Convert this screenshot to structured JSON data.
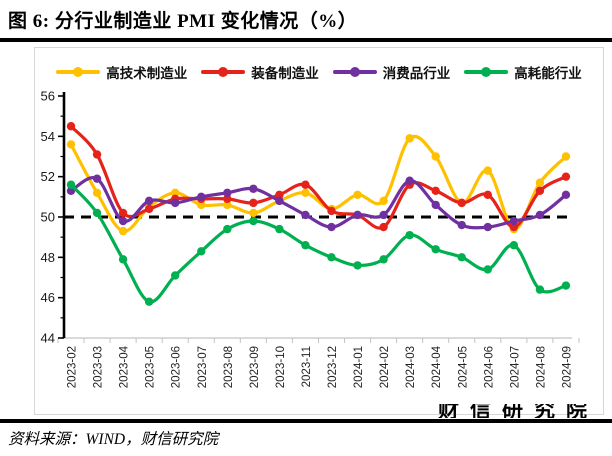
{
  "page": {
    "title": "图 6: 分行业制造业 PMI 变化情况（%）",
    "source_note": "资料来源：WIND，财信研究院",
    "watermark": "财信研究院"
  },
  "chart_data": {
    "type": "line",
    "title": "分行业制造业PMI变化情况（%）",
    "unit": "%",
    "categories": [
      "2023-02",
      "2023-03",
      "2023-04",
      "2023-05",
      "2023-06",
      "2023-07",
      "2023-08",
      "2023-09",
      "2023-10",
      "2023-11",
      "2023-12",
      "2024-01",
      "2024-02",
      "2024-03",
      "2024-04",
      "2024-05",
      "2024-06",
      "2024-07",
      "2024-08",
      "2024-09"
    ],
    "series": [
      {
        "name": "高技术制造业",
        "color": "#FFC000",
        "values": [
          53.6,
          51.2,
          49.3,
          50.5,
          51.2,
          50.6,
          50.6,
          50.2,
          50.8,
          51.2,
          50.4,
          51.1,
          50.8,
          53.9,
          53.0,
          50.7,
          52.3,
          49.4,
          51.7,
          53.0
        ]
      },
      {
        "name": "装备制造业",
        "color": "#E5231B",
        "values": [
          54.5,
          53.1,
          50.2,
          50.4,
          50.9,
          50.9,
          50.9,
          50.7,
          51.1,
          51.6,
          50.3,
          50.1,
          49.5,
          51.6,
          51.3,
          50.7,
          51.1,
          49.5,
          51.3,
          52.0
        ]
      },
      {
        "name": "消费品行业",
        "color": "#7030A0",
        "values": [
          51.3,
          51.9,
          49.8,
          50.8,
          50.7,
          51.0,
          51.2,
          51.4,
          50.8,
          50.1,
          49.5,
          50.1,
          50.1,
          51.8,
          50.6,
          49.6,
          49.5,
          49.8,
          50.1,
          51.1
        ]
      },
      {
        "name": "高耗能行业",
        "color": "#00B050",
        "values": [
          51.6,
          50.2,
          47.9,
          45.8,
          47.1,
          48.3,
          49.4,
          49.8,
          49.4,
          48.6,
          48.0,
          47.6,
          47.9,
          49.1,
          48.4,
          48.0,
          47.4,
          48.6,
          46.4,
          46.6
        ]
      }
    ],
    "ylim": [
      44,
      56
    ],
    "ytick_step": 2,
    "yticks": [
      44,
      46,
      48,
      50,
      52,
      54,
      56
    ],
    "reference_line": 50,
    "reference_line_style": "black-dashed",
    "legend_position": "top-inside",
    "grid": false,
    "x_label_rotation": -90
  }
}
